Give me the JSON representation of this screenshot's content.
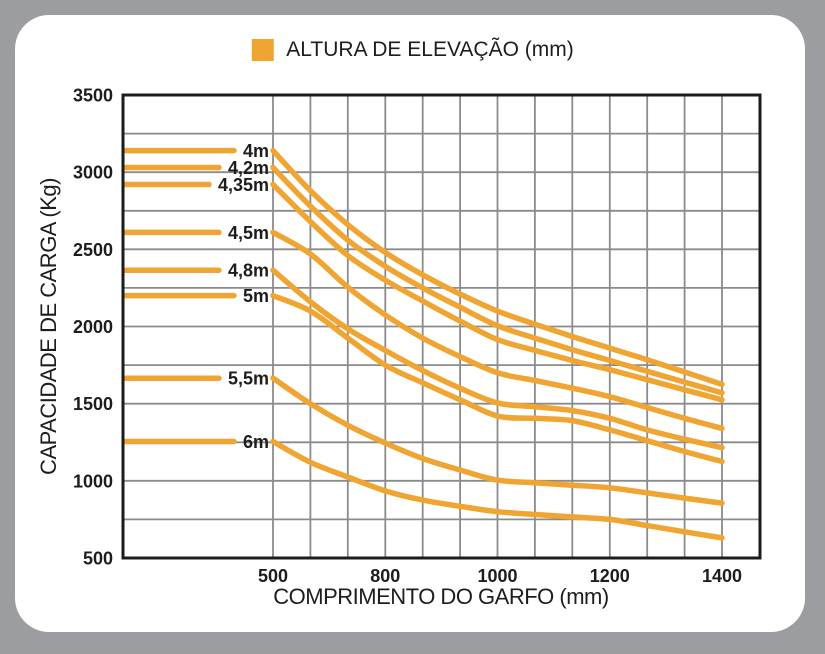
{
  "page": {
    "background_color": "#9C9DA0",
    "card_color": "#FFFFFF"
  },
  "legend": {
    "label": "ALTURA DE ELEVAÇÃO (mm)",
    "swatch_color": "#F0A532",
    "position": "top-center"
  },
  "axes": {
    "y_title": "CAPACIDADE DE CARGA (Kg)",
    "x_title": "COMPRIMENTO DO GARFO (mm)",
    "y_tick_labels": [
      "3500",
      "3000",
      "2500",
      "2000",
      "1500",
      "1000",
      "500"
    ],
    "x_tick_labels": [
      "500",
      "800",
      "1000",
      "1200",
      "1400"
    ]
  },
  "chart_data": {
    "type": "line",
    "title": "ALTURA DE ELEVAÇÃO (mm)",
    "xlabel": "COMPRIMENTO DO GARFO (mm)",
    "ylabel": "CAPACIDADE DE CARGA (Kg)",
    "ylim": [
      500,
      3500
    ],
    "y_tick_step": 500,
    "y_gridline_step": 250,
    "x_ticks": [
      500,
      800,
      1000,
      1200,
      1400
    ],
    "x_gridlines_total": 13,
    "x_labeled_gridline_indices": [
      0,
      3,
      6,
      9,
      12
    ],
    "grid": true,
    "legend_position": "top-center",
    "line_color": "#F0A532",
    "grid_color": "#8B8B8B",
    "axis_color": "#1C1C1C",
    "text_color": "#1D1D1B",
    "series_unit": "m (lift height), capacity in Kg vs fork length in mm; flat segment left of the 500 mm gridline ends at the series label",
    "series": [
      {
        "name": "4m",
        "flat_value": 3140,
        "values_at_ticks": [
          3140,
          2480,
          2100,
          1860,
          1625
        ],
        "gridline_values": [
          3140,
          2880,
          2660,
          2480,
          2335,
          2210,
          2100,
          2015,
          1935,
          1860,
          1785,
          1705,
          1625
        ]
      },
      {
        "name": "4,2m",
        "flat_value": 3030,
        "values_at_ticks": [
          3030,
          2390,
          2005,
          1780,
          1570
        ],
        "gridline_values": [
          3030,
          2780,
          2560,
          2390,
          2250,
          2125,
          2005,
          1925,
          1850,
          1780,
          1710,
          1640,
          1570
        ]
      },
      {
        "name": "4,35m",
        "flat_value": 2920,
        "values_at_ticks": [
          2920,
          2300,
          1915,
          1720,
          1525
        ],
        "gridline_values": [
          2920,
          2680,
          2460,
          2300,
          2165,
          2035,
          1915,
          1845,
          1780,
          1720,
          1655,
          1590,
          1525
        ]
      },
      {
        "name": "4,5m",
        "flat_value": 2610,
        "values_at_ticks": [
          2610,
          2075,
          1700,
          1545,
          1340
        ],
        "gridline_values": [
          2610,
          2470,
          2255,
          2075,
          1925,
          1805,
          1700,
          1650,
          1600,
          1545,
          1475,
          1405,
          1340
        ]
      },
      {
        "name": "4,8m",
        "flat_value": 2365,
        "values_at_ticks": [
          2365,
          1845,
          1505,
          1405,
          1215
        ],
        "gridline_values": [
          2365,
          2160,
          1985,
          1845,
          1715,
          1600,
          1505,
          1480,
          1455,
          1405,
          1330,
          1270,
          1215
        ]
      },
      {
        "name": "5m",
        "flat_value": 2200,
        "values_at_ticks": [
          2200,
          1750,
          1420,
          1330,
          1125
        ],
        "gridline_values": [
          2200,
          2100,
          1925,
          1750,
          1635,
          1525,
          1420,
          1405,
          1390,
          1330,
          1260,
          1190,
          1125
        ]
      },
      {
        "name": "5,5m",
        "flat_value": 1665,
        "values_at_ticks": [
          1665,
          1245,
          1005,
          955,
          855
        ],
        "gridline_values": [
          1665,
          1500,
          1360,
          1245,
          1145,
          1070,
          1005,
          988,
          972,
          955,
          922,
          888,
          855
        ]
      },
      {
        "name": "6m",
        "flat_value": 1255,
        "values_at_ticks": [
          1255,
          935,
          800,
          750,
          630
        ],
        "gridline_values": [
          1255,
          1120,
          1025,
          935,
          875,
          835,
          800,
          782,
          766,
          750,
          710,
          670,
          630
        ]
      }
    ]
  }
}
